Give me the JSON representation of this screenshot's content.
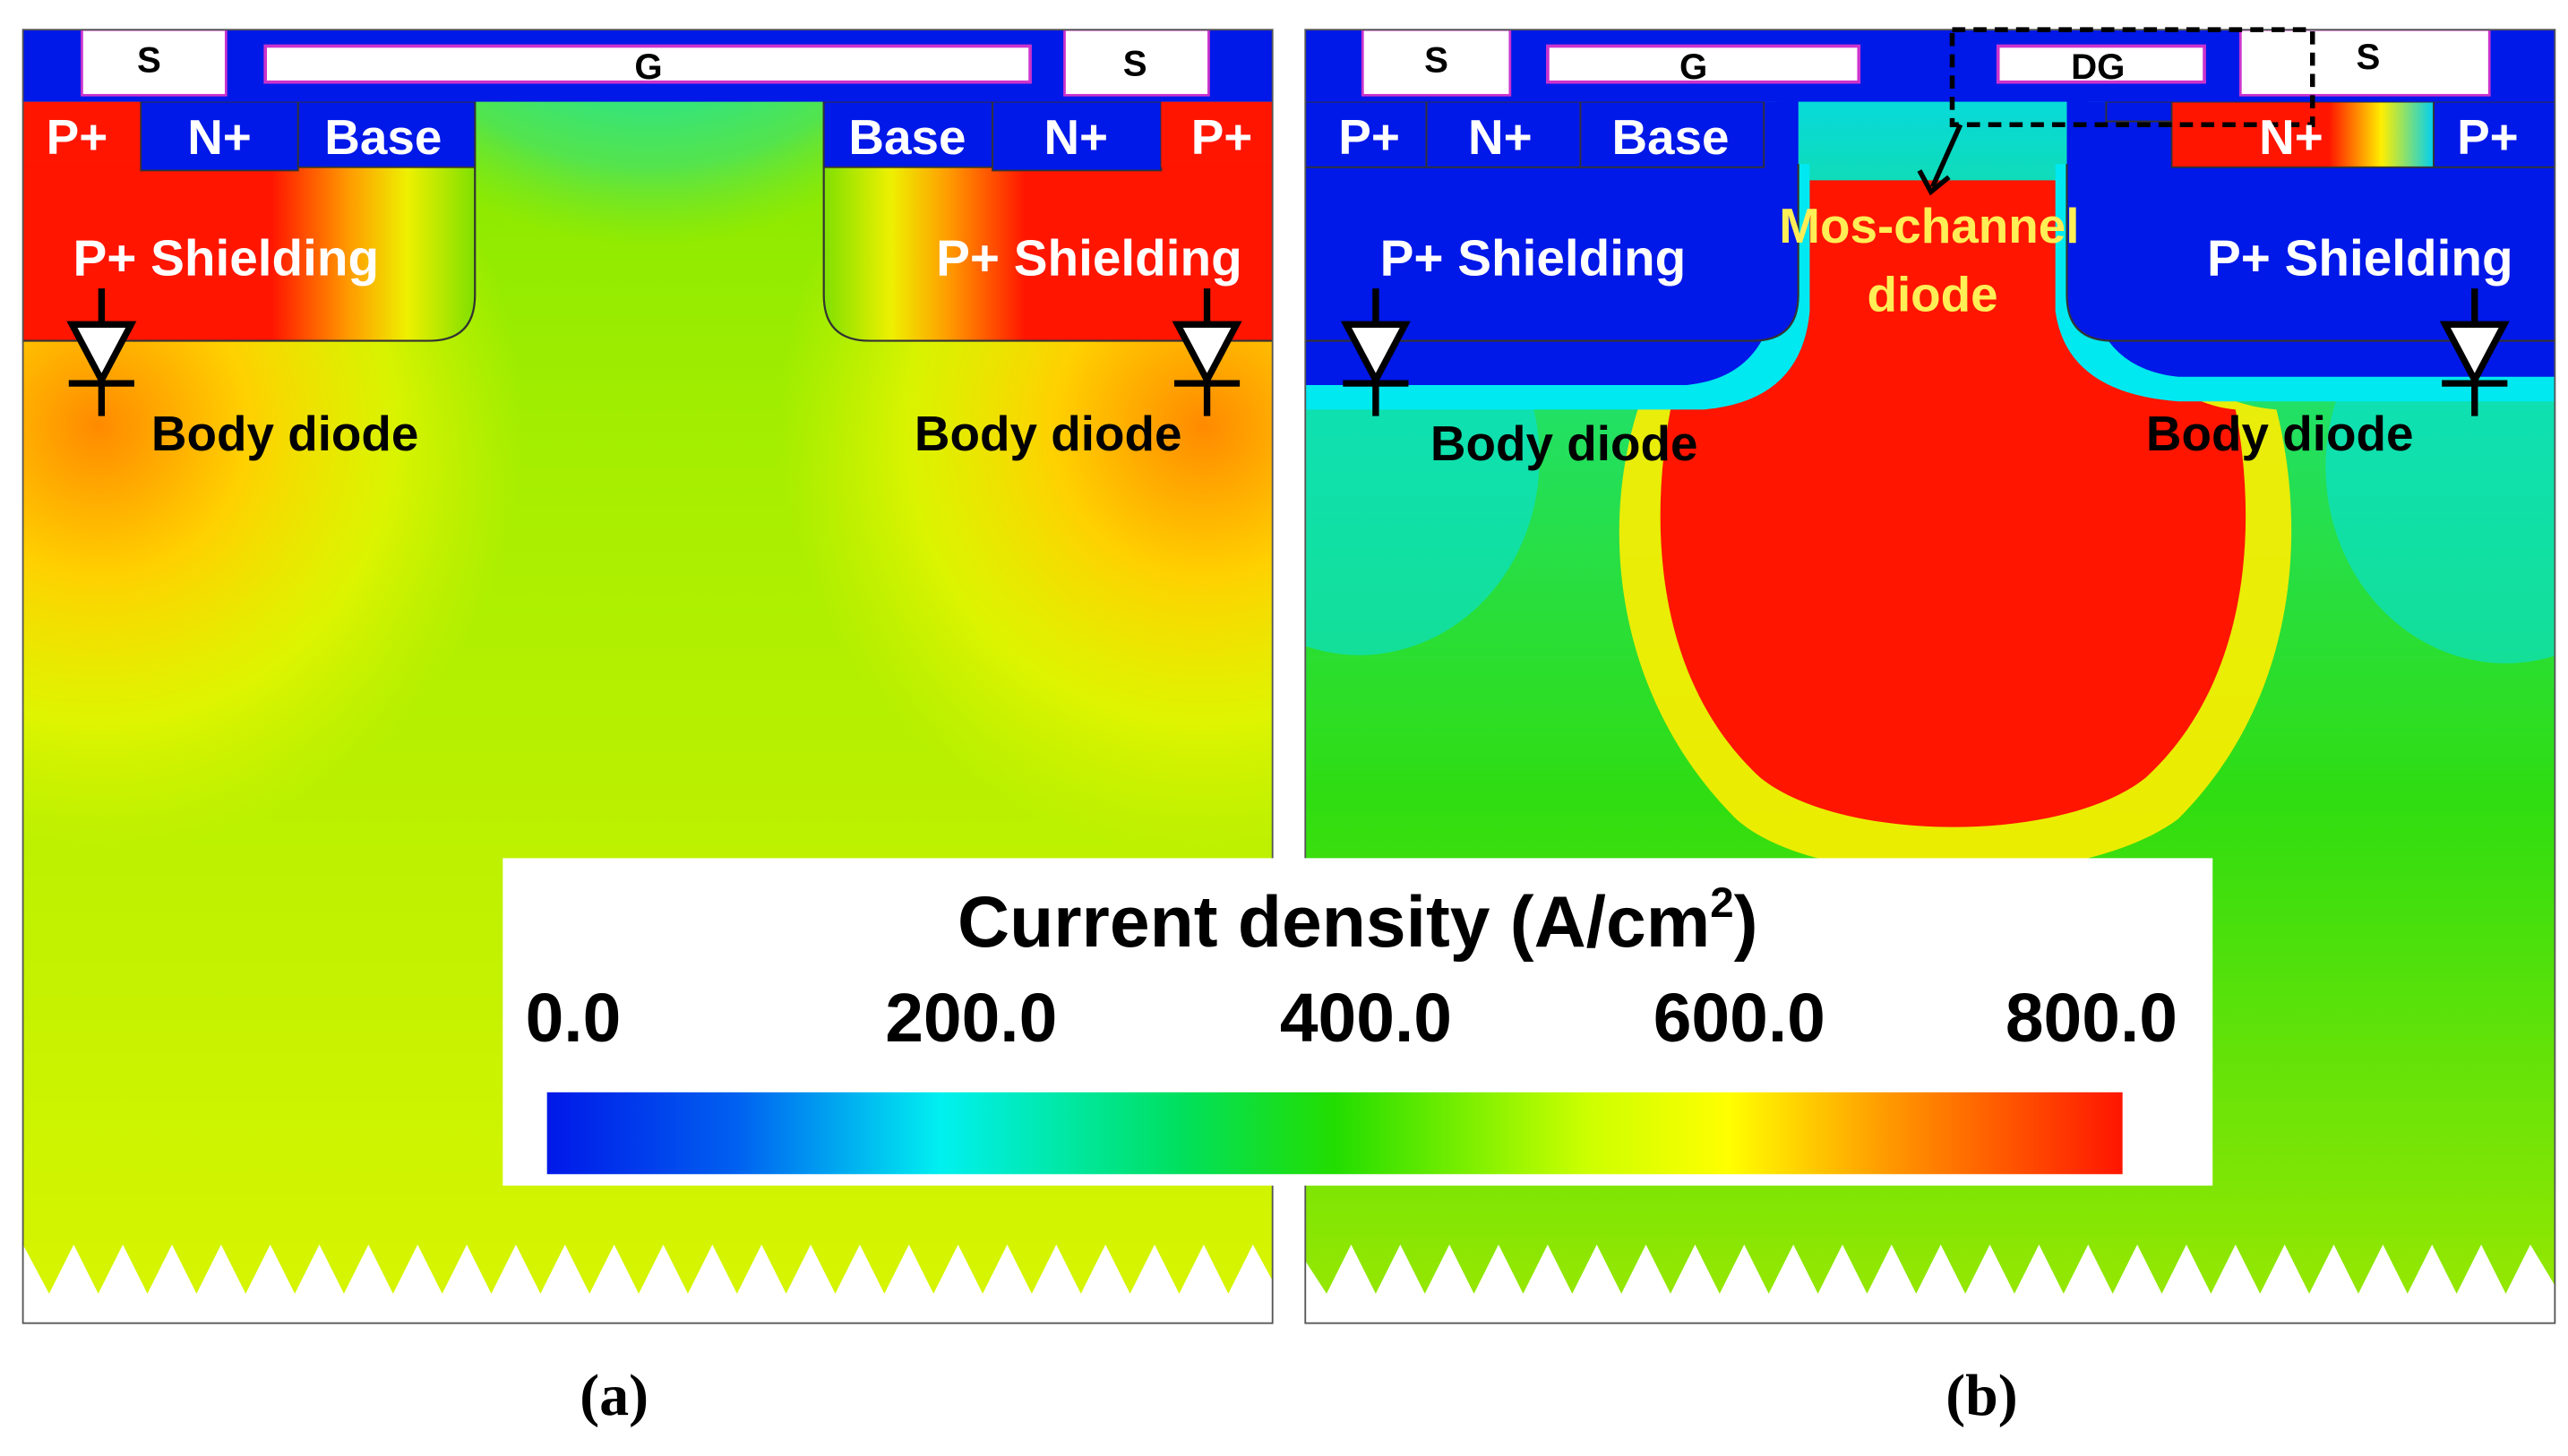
{
  "panel_a": {
    "caption": "(a)",
    "labels": {
      "source_left": "S",
      "source_right": "S",
      "gate": "G",
      "p_plus_left": "P+",
      "n_plus_left": "N+",
      "base_left": "Base",
      "base_right": "Base",
      "n_plus_right": "N+",
      "p_plus_right": "P+",
      "shield_left": "P+ Shielding",
      "shield_right": "P+ Shielding",
      "body_diode_left": "Body diode",
      "body_diode_right": "Body diode"
    }
  },
  "panel_b": {
    "caption": "(b)",
    "labels": {
      "source_left": "S",
      "source_right": "S",
      "gate": "G",
      "dummy_gate": "DG",
      "p_plus_left": "P+",
      "n_plus_left": "N+",
      "base_left": "Base",
      "n_plus_right": "N+",
      "p_plus_right": "P+",
      "shield_left": "P+ Shielding",
      "shield_right": "P+ Shielding",
      "mos_channel_line1": "Mos-channel",
      "mos_channel_line2": "diode",
      "body_diode_left": "Body diode",
      "body_diode_right": "Body diode"
    }
  },
  "colorbar": {
    "title": "Current density (A/cm",
    "title_sup": "2",
    "title_close": ")",
    "ticks": [
      "0.0",
      "200.0",
      "400.0",
      "600.0",
      "800.0"
    ],
    "range": [
      0,
      800
    ],
    "unit": "A/cm2"
  },
  "colors": {
    "blue": "#0018e8",
    "cyan": "#00f0f0",
    "green": "#22dd00",
    "yellow": "#ffff00",
    "red": "#ff1500",
    "label_white": "#ffffff",
    "label_yellow": "#ffee55",
    "gate_border": "#cc33cc"
  }
}
